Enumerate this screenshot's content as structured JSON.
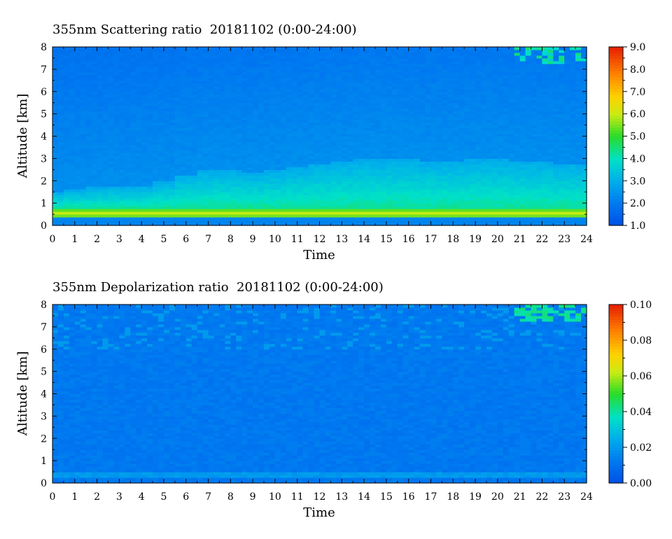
{
  "chart_data": [
    {
      "type": "heatmap",
      "title": "355nm Scattering ratio  20181102 (0:00-24:00)",
      "xlabel": "Time",
      "ylabel": "Altitude [km]",
      "xlim": [
        0,
        24
      ],
      "ylim": [
        0,
        8
      ],
      "x_ticks": [
        "0",
        "1",
        "2",
        "3",
        "4",
        "5",
        "6",
        "7",
        "8",
        "9",
        "10",
        "11",
        "12",
        "13",
        "14",
        "15",
        "16",
        "17",
        "18",
        "19",
        "20",
        "21",
        "22",
        "23",
        "24"
      ],
      "y_ticks": [
        "0",
        "1",
        "2",
        "3",
        "4",
        "5",
        "6",
        "7",
        "8"
      ],
      "colorbar": {
        "range": [
          1.0,
          9.0
        ],
        "ticks": [
          "1.0",
          "2.0",
          "3.0",
          "4.0",
          "5.0",
          "6.0",
          "7.0",
          "8.0",
          "9.0"
        ]
      },
      "features": {
        "background_value": 2.4,
        "boundary_layer_top_km": [
          1.5,
          1.6,
          1.7,
          1.75,
          1.8,
          2.0,
          2.3,
          2.5,
          2.5,
          2.4,
          2.5,
          2.6,
          2.8,
          2.9,
          3.0,
          3.0,
          3.0,
          2.9,
          2.9,
          3.0,
          3.0,
          2.9,
          2.9,
          2.8,
          2.8
        ],
        "peak_layer_km": 0.55,
        "peak_value": 6.0
      }
    },
    {
      "type": "heatmap",
      "title": "355nm Depolarization ratio  20181102 (0:00-24:00)",
      "xlabel": "Time",
      "ylabel": "Altitude [km]",
      "xlim": [
        0,
        24
      ],
      "ylim": [
        0,
        8
      ],
      "x_ticks": [
        "0",
        "1",
        "2",
        "3",
        "4",
        "5",
        "6",
        "7",
        "8",
        "9",
        "10",
        "11",
        "12",
        "13",
        "14",
        "15",
        "16",
        "17",
        "18",
        "19",
        "20",
        "21",
        "22",
        "23",
        "24"
      ],
      "y_ticks": [
        "0",
        "1",
        "2",
        "3",
        "4",
        "5",
        "6",
        "7",
        "8"
      ],
      "colorbar": {
        "range": [
          0.0,
          0.1
        ],
        "ticks": [
          "0.00",
          "0.02",
          "0.04",
          "0.06",
          "0.08",
          "0.10"
        ]
      },
      "features": {
        "background_value": 0.012,
        "near_surface_layer_km": [
          0.2,
          0.5
        ],
        "near_surface_value": 0.02,
        "cloud_region_hours": [
          20.8,
          24
        ],
        "cloud_region_km": [
          7.3,
          8
        ]
      }
    }
  ]
}
